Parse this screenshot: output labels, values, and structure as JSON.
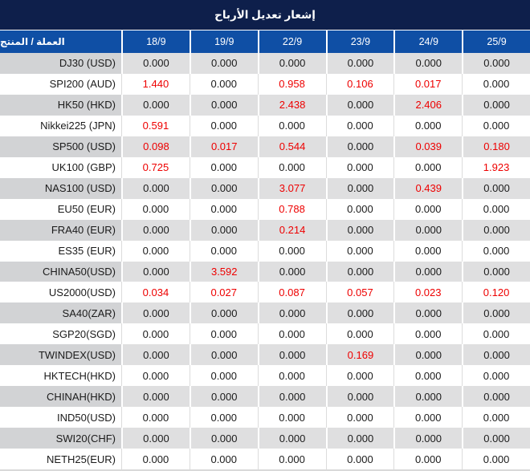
{
  "title": "إشعار تعديل الأرباح",
  "table": {
    "product_header": "العملة / المنتج",
    "date_headers": [
      "18/9",
      "19/9",
      "22/9",
      "23/9",
      "24/9",
      "25/9"
    ],
    "rows": [
      {
        "label": "DJ30 (USD)",
        "values": [
          "0.000",
          "0.000",
          "0.000",
          "0.000",
          "0.000",
          "0.000"
        ],
        "red": [
          0,
          0,
          0,
          0,
          0,
          0
        ]
      },
      {
        "label": "SPI200 (AUD)",
        "values": [
          "1.440",
          "0.000",
          "0.958",
          "0.106",
          "0.017",
          "0.000"
        ],
        "red": [
          1,
          0,
          1,
          1,
          1,
          0
        ]
      },
      {
        "label": "HK50 (HKD)",
        "values": [
          "0.000",
          "0.000",
          "2.438",
          "0.000",
          "2.406",
          "0.000"
        ],
        "red": [
          0,
          0,
          1,
          0,
          1,
          0
        ]
      },
      {
        "label": "Nikkei225 (JPN)",
        "values": [
          "0.591",
          "0.000",
          "0.000",
          "0.000",
          "0.000",
          "0.000"
        ],
        "red": [
          1,
          0,
          0,
          0,
          0,
          0
        ]
      },
      {
        "label": "SP500 (USD)",
        "values": [
          "0.098",
          "0.017",
          "0.544",
          "0.000",
          "0.039",
          "0.180"
        ],
        "red": [
          1,
          1,
          1,
          0,
          1,
          1
        ]
      },
      {
        "label": "UK100 (GBP)",
        "values": [
          "0.725",
          "0.000",
          "0.000",
          "0.000",
          "0.000",
          "1.923"
        ],
        "red": [
          1,
          0,
          0,
          0,
          0,
          1
        ]
      },
      {
        "label": "NAS100 (USD)",
        "values": [
          "0.000",
          "0.000",
          "3.077",
          "0.000",
          "0.439",
          "0.000"
        ],
        "red": [
          0,
          0,
          1,
          0,
          1,
          0
        ]
      },
      {
        "label": "EU50 (EUR)",
        "values": [
          "0.000",
          "0.000",
          "0.788",
          "0.000",
          "0.000",
          "0.000"
        ],
        "red": [
          0,
          0,
          1,
          0,
          0,
          0
        ]
      },
      {
        "label": "FRA40 (EUR)",
        "values": [
          "0.000",
          "0.000",
          "0.214",
          "0.000",
          "0.000",
          "0.000"
        ],
        "red": [
          0,
          0,
          1,
          0,
          0,
          0
        ]
      },
      {
        "label": "ES35 (EUR)",
        "values": [
          "0.000",
          "0.000",
          "0.000",
          "0.000",
          "0.000",
          "0.000"
        ],
        "red": [
          0,
          0,
          0,
          0,
          0,
          0
        ]
      },
      {
        "label": "CHINA50(USD)",
        "values": [
          "0.000",
          "3.592",
          "0.000",
          "0.000",
          "0.000",
          "0.000"
        ],
        "red": [
          0,
          1,
          0,
          0,
          0,
          0
        ]
      },
      {
        "label": "US2000(USD)",
        "values": [
          "0.034",
          "0.027",
          "0.087",
          "0.057",
          "0.023",
          "0.120"
        ],
        "red": [
          1,
          1,
          1,
          1,
          1,
          1
        ]
      },
      {
        "label": "SA40(ZAR)",
        "values": [
          "0.000",
          "0.000",
          "0.000",
          "0.000",
          "0.000",
          "0.000"
        ],
        "red": [
          0,
          0,
          0,
          0,
          0,
          0
        ]
      },
      {
        "label": "SGP20(SGD)",
        "values": [
          "0.000",
          "0.000",
          "0.000",
          "0.000",
          "0.000",
          "0.000"
        ],
        "red": [
          0,
          0,
          0,
          0,
          0,
          0
        ]
      },
      {
        "label": "TWINDEX(USD)",
        "values": [
          "0.000",
          "0.000",
          "0.000",
          "0.169",
          "0.000",
          "0.000"
        ],
        "red": [
          0,
          0,
          0,
          1,
          0,
          0
        ]
      },
      {
        "label": "HKTECH(HKD)",
        "values": [
          "0.000",
          "0.000",
          "0.000",
          "0.000",
          "0.000",
          "0.000"
        ],
        "red": [
          0,
          0,
          0,
          0,
          0,
          0
        ]
      },
      {
        "label": "CHINAH(HKD)",
        "values": [
          "0.000",
          "0.000",
          "0.000",
          "0.000",
          "0.000",
          "0.000"
        ],
        "red": [
          0,
          0,
          0,
          0,
          0,
          0
        ]
      },
      {
        "label": "IND50(USD)",
        "values": [
          "0.000",
          "0.000",
          "0.000",
          "0.000",
          "0.000",
          "0.000"
        ],
        "red": [
          0,
          0,
          0,
          0,
          0,
          0
        ]
      },
      {
        "label": "SWI20(CHF)",
        "values": [
          "0.000",
          "0.000",
          "0.000",
          "0.000",
          "0.000",
          "0.000"
        ],
        "red": [
          0,
          0,
          0,
          0,
          0,
          0
        ]
      },
      {
        "label": "NETH25(EUR)",
        "values": [
          "0.000",
          "0.000",
          "0.000",
          "0.000",
          "0.000",
          "0.000"
        ],
        "red": [
          0,
          0,
          0,
          0,
          0,
          0
        ]
      }
    ]
  },
  "colors": {
    "title_bar": "#0e1f4b",
    "header_blue": "#0f4fa5",
    "gray_row_label": "#d2d3d5",
    "gray_row_value": "#dfdfe0",
    "negative_red": "#ee0000",
    "text": "#1b1b1b"
  }
}
